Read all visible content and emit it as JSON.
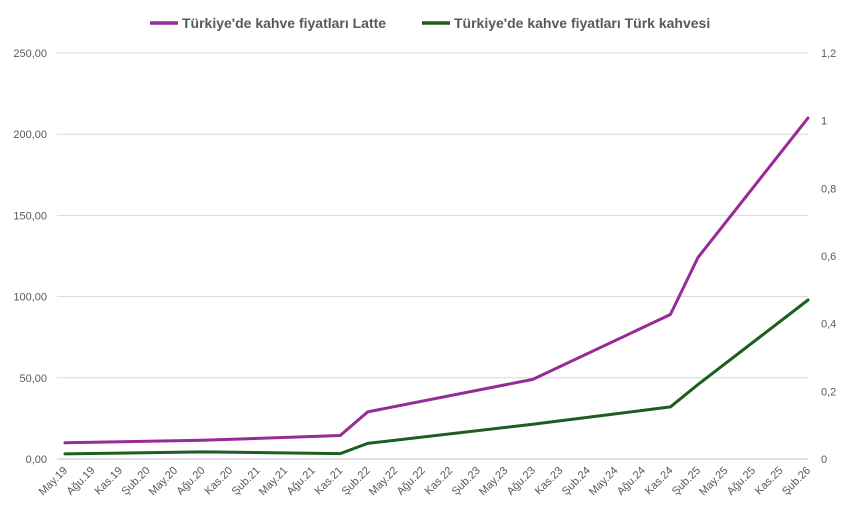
{
  "chart_data": {
    "type": "line",
    "title": "",
    "legend_position": "top",
    "grid": true,
    "categories": [
      "May.19",
      "Ağu.19",
      "Kas.19",
      "Şub.20",
      "May.20",
      "Ağu.20",
      "Kas.20",
      "Şub.21",
      "May.21",
      "Ağu.21",
      "Kas.21",
      "Şub.22",
      "May.22",
      "Ağu.22",
      "Kas.22",
      "Şub.23",
      "May.23",
      "Ağu.23",
      "Kas.23",
      "Şub.24",
      "May.24",
      "Ağu.24",
      "Kas.24",
      "Şub.25",
      "May.25",
      "Ağu.25",
      "Kas.25",
      "Şub.26"
    ],
    "y_left": {
      "ticks": [
        "0,00",
        "50,00",
        "100,00",
        "150,00",
        "200,00",
        "250,00"
      ],
      "ylim": [
        0,
        250
      ]
    },
    "y_right": {
      "ticks": [
        "0",
        "0,2",
        "0,4",
        "0,6",
        "0,8",
        "1",
        "1,2"
      ],
      "ylim": [
        0,
        1.2
      ]
    },
    "series": [
      {
        "name": "Türkiye'de kahve fiyatları Latte",
        "color": "#962a96",
        "axis": "left",
        "points": [
          [
            0,
            10
          ],
          [
            5,
            11.5
          ],
          [
            10,
            14.5
          ],
          [
            11,
            29
          ],
          [
            17,
            49
          ],
          [
            22,
            89
          ],
          [
            23,
            124
          ],
          [
            27,
            210
          ]
        ]
      },
      {
        "name": "Türkiye'de kahve fiyatları Türk kahvesi",
        "color": "#1b5e20",
        "axis": "right",
        "points": [
          [
            0,
            0.015
          ],
          [
            5,
            0.021
          ],
          [
            10,
            0.016
          ],
          [
            11,
            0.046
          ],
          [
            17,
            0.103
          ],
          [
            22,
            0.154
          ],
          [
            23,
            0.22
          ],
          [
            27,
            0.47
          ]
        ]
      }
    ]
  }
}
